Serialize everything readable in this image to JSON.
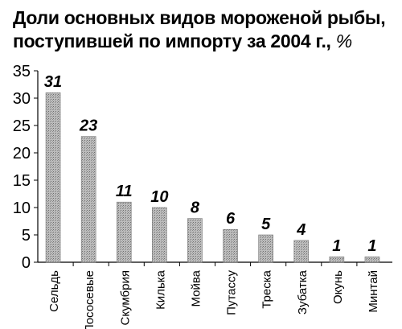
{
  "chart_data": {
    "type": "bar",
    "title_line1": "Доли основных видов мороженой рыбы,",
    "title_line2": "поступившей по импорту за 2004 г.,",
    "unit": "%",
    "categories": [
      "Сельдь",
      "Лососевые",
      "Скумбрия",
      "Килька",
      "Мойва",
      "Путассу",
      "Треска",
      "Зубатка",
      "Окунь",
      "Минтай"
    ],
    "values": [
      31,
      23,
      11,
      10,
      8,
      6,
      5,
      4,
      1,
      1
    ],
    "value_labels": [
      "31",
      "23",
      "11",
      "10",
      "8",
      "6",
      "5",
      "4",
      "1",
      "1"
    ],
    "yticks": [
      "0",
      "5",
      "10",
      "15",
      "20",
      "25",
      "30",
      "35"
    ],
    "ylim": [
      0,
      35
    ],
    "grid": false,
    "bar_color": "#a9a9a9"
  }
}
